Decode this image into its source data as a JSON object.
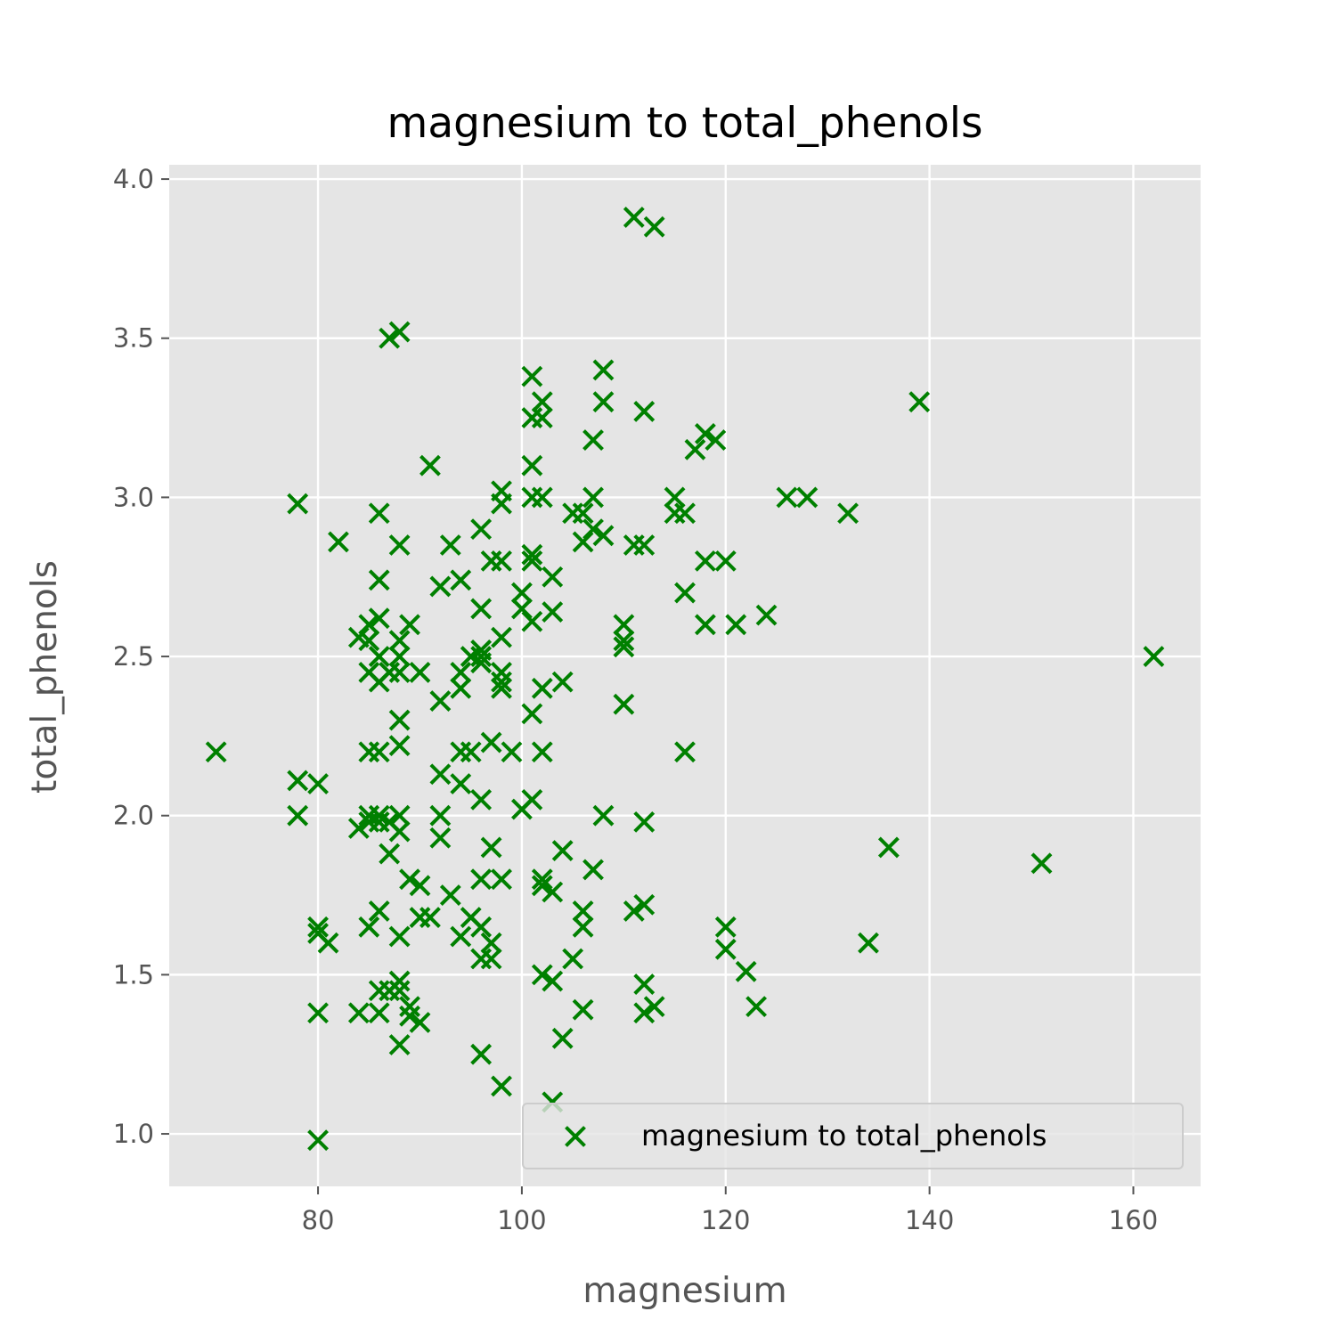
{
  "chart_data": {
    "type": "scatter",
    "title": "magnesium to total_phenols",
    "xlabel": "magnesium",
    "ylabel": "total_phenols",
    "xlim": [
      65.4,
      166.6
    ],
    "ylim": [
      0.835,
      4.045
    ],
    "xticks": [
      80,
      100,
      120,
      140,
      160
    ],
    "yticks": [
      1.0,
      1.5,
      2.0,
      2.5,
      3.0,
      3.5,
      4.0
    ],
    "xtick_labels": [
      "80",
      "100",
      "120",
      "140",
      "160"
    ],
    "ytick_labels": [
      "1.0",
      "1.5",
      "2.0",
      "2.5",
      "3.0",
      "3.5",
      "4.0"
    ],
    "grid": true,
    "legend_position": "lower-right",
    "colors": {
      "marker": "#008000",
      "plot_bg": "#e5e5e5",
      "grid": "#ffffff",
      "legend_bg": "#e5e5e5",
      "legend_border": "#cccccc"
    },
    "series": [
      {
        "name": "magnesium to total_phenols",
        "marker": "x",
        "points": [
          [
            111,
            3.88
          ],
          [
            113,
            3.85
          ],
          [
            88,
            3.52
          ],
          [
            87,
            3.5
          ],
          [
            108,
            3.4
          ],
          [
            101,
            3.38
          ],
          [
            102,
            3.3
          ],
          [
            108,
            3.3
          ],
          [
            139,
            3.3
          ],
          [
            112,
            3.27
          ],
          [
            101,
            3.25
          ],
          [
            102,
            3.25
          ],
          [
            118,
            3.2
          ],
          [
            119,
            3.18
          ],
          [
            107,
            3.18
          ],
          [
            117,
            3.15
          ],
          [
            91,
            3.1
          ],
          [
            101,
            3.1
          ],
          [
            78,
            2.98
          ],
          [
            98,
            3.02
          ],
          [
            98,
            2.98
          ],
          [
            101,
            3.0
          ],
          [
            102,
            3.0
          ],
          [
            107,
            3.0
          ],
          [
            115,
            3.0
          ],
          [
            126,
            3.0
          ],
          [
            128,
            3.0
          ],
          [
            86,
            2.95
          ],
          [
            105,
            2.95
          ],
          [
            106,
            2.95
          ],
          [
            115,
            2.95
          ],
          [
            116,
            2.95
          ],
          [
            132,
            2.95
          ],
          [
            96,
            2.9
          ],
          [
            107,
            2.9
          ],
          [
            108,
            2.88
          ],
          [
            106,
            2.86
          ],
          [
            82,
            2.86
          ],
          [
            88,
            2.85
          ],
          [
            93,
            2.85
          ],
          [
            111,
            2.85
          ],
          [
            112,
            2.85
          ],
          [
            101,
            2.82
          ],
          [
            101,
            2.8
          ],
          [
            97,
            2.8
          ],
          [
            98,
            2.8
          ],
          [
            118,
            2.8
          ],
          [
            120,
            2.8
          ],
          [
            86,
            2.74
          ],
          [
            94,
            2.74
          ],
          [
            103,
            2.75
          ],
          [
            92,
            2.72
          ],
          [
            116,
            2.7
          ],
          [
            100,
            2.7
          ],
          [
            96,
            2.65
          ],
          [
            100,
            2.65
          ],
          [
            103,
            2.64
          ],
          [
            124,
            2.63
          ],
          [
            86,
            2.62
          ],
          [
            85,
            2.6
          ],
          [
            89,
            2.6
          ],
          [
            110,
            2.6
          ],
          [
            101,
            2.61
          ],
          [
            118,
            2.6
          ],
          [
            121,
            2.6
          ],
          [
            84,
            2.56
          ],
          [
            85,
            2.55
          ],
          [
            88,
            2.55
          ],
          [
            98,
            2.56
          ],
          [
            110,
            2.55
          ],
          [
            96,
            2.52
          ],
          [
            95,
            2.5
          ],
          [
            96,
            2.5
          ],
          [
            110,
            2.53
          ],
          [
            86,
            2.5
          ],
          [
            88,
            2.5
          ],
          [
            162,
            2.5
          ],
          [
            85,
            2.45
          ],
          [
            87,
            2.45
          ],
          [
            88,
            2.45
          ],
          [
            90,
            2.45
          ],
          [
            94,
            2.45
          ],
          [
            96,
            2.48
          ],
          [
            98,
            2.45
          ],
          [
            86,
            2.42
          ],
          [
            94,
            2.4
          ],
          [
            98,
            2.42
          ],
          [
            98,
            2.4
          ],
          [
            102,
            2.4
          ],
          [
            104,
            2.42
          ],
          [
            92,
            2.36
          ],
          [
            110,
            2.35
          ],
          [
            101,
            2.32
          ],
          [
            88,
            2.3
          ],
          [
            88,
            2.22
          ],
          [
            97,
            2.23
          ],
          [
            70,
            2.2
          ],
          [
            85,
            2.2
          ],
          [
            86,
            2.2
          ],
          [
            94,
            2.2
          ],
          [
            95,
            2.2
          ],
          [
            99,
            2.2
          ],
          [
            102,
            2.2
          ],
          [
            116,
            2.2
          ],
          [
            92,
            2.13
          ],
          [
            78,
            2.11
          ],
          [
            80,
            2.1
          ],
          [
            94,
            2.1
          ],
          [
            96,
            2.05
          ],
          [
            101,
            2.05
          ],
          [
            100,
            2.02
          ],
          [
            78,
            2.0
          ],
          [
            85,
            2.0
          ],
          [
            86,
            2.0
          ],
          [
            88,
            2.0
          ],
          [
            92,
            2.0
          ],
          [
            108,
            2.0
          ],
          [
            84,
            1.96
          ],
          [
            85,
            1.98
          ],
          [
            86,
            1.98
          ],
          [
            87,
            1.98
          ],
          [
            88,
            1.95
          ],
          [
            92,
            1.93
          ],
          [
            112,
            1.98
          ],
          [
            87,
            1.88
          ],
          [
            97,
            1.9
          ],
          [
            104,
            1.89
          ],
          [
            136,
            1.9
          ],
          [
            151,
            1.85
          ],
          [
            89,
            1.8
          ],
          [
            90,
            1.78
          ],
          [
            96,
            1.8
          ],
          [
            98,
            1.8
          ],
          [
            102,
            1.8
          ],
          [
            103,
            1.76
          ],
          [
            102,
            1.78
          ],
          [
            107,
            1.83
          ],
          [
            93,
            1.75
          ],
          [
            95,
            1.68
          ],
          [
            96,
            1.65
          ],
          [
            91,
            1.68
          ],
          [
            90,
            1.68
          ],
          [
            86,
            1.7
          ],
          [
            85,
            1.65
          ],
          [
            106,
            1.7
          ],
          [
            106,
            1.65
          ],
          [
            111,
            1.7
          ],
          [
            112,
            1.72
          ],
          [
            120,
            1.65
          ],
          [
            80,
            1.65
          ],
          [
            80,
            1.63
          ],
          [
            81,
            1.6
          ],
          [
            88,
            1.62
          ],
          [
            94,
            1.62
          ],
          [
            97,
            1.6
          ],
          [
            105,
            1.55
          ],
          [
            120,
            1.58
          ],
          [
            96,
            1.55
          ],
          [
            97,
            1.55
          ],
          [
            102,
            1.5
          ],
          [
            103,
            1.48
          ],
          [
            112,
            1.47
          ],
          [
            122,
            1.51
          ],
          [
            134,
            1.6
          ],
          [
            86,
            1.45
          ],
          [
            87,
            1.45
          ],
          [
            88,
            1.48
          ],
          [
            88,
            1.45
          ],
          [
            89,
            1.4
          ],
          [
            86,
            1.38
          ],
          [
            84,
            1.38
          ],
          [
            80,
            1.38
          ],
          [
            89,
            1.37
          ],
          [
            90,
            1.35
          ],
          [
            106,
            1.39
          ],
          [
            112,
            1.38
          ],
          [
            113,
            1.4
          ],
          [
            123,
            1.4
          ],
          [
            104,
            1.3
          ],
          [
            88,
            1.28
          ],
          [
            96,
            1.25
          ],
          [
            98,
            1.15
          ],
          [
            103,
            1.1
          ],
          [
            80,
            0.98
          ]
        ]
      }
    ]
  }
}
